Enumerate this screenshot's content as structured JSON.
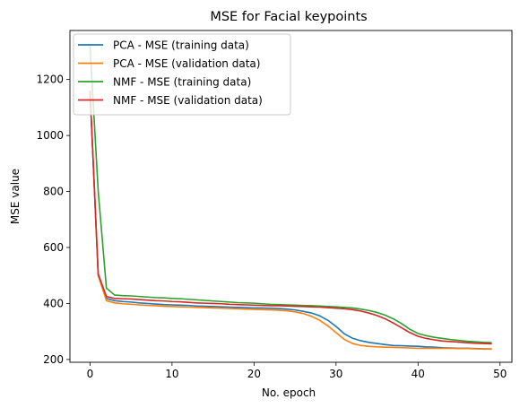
{
  "chart_data": {
    "type": "line",
    "title": "MSE for Facial keypoints",
    "xlabel": "No. epoch",
    "ylabel": "MSE value",
    "xlim": [
      -2.45,
      51.45
    ],
    "ylim": [
      190,
      1375
    ],
    "xticks": [
      0,
      10,
      20,
      30,
      40,
      50
    ],
    "yticks": [
      200,
      400,
      600,
      800,
      1000,
      1200
    ],
    "xtick_labels": [
      "0",
      "10",
      "20",
      "30",
      "40",
      "50"
    ],
    "ytick_labels": [
      "200",
      "400",
      "600",
      "800",
      "1000",
      "1200"
    ],
    "grid": false,
    "legend_position": "upper-left",
    "x": [
      0,
      1,
      2,
      3,
      4,
      5,
      6,
      7,
      8,
      9,
      10,
      11,
      12,
      13,
      14,
      15,
      16,
      17,
      18,
      19,
      20,
      21,
      22,
      23,
      24,
      25,
      26,
      27,
      28,
      29,
      30,
      31,
      32,
      33,
      34,
      35,
      36,
      37,
      38,
      39,
      40,
      41,
      42,
      43,
      44,
      45,
      46,
      47,
      48,
      49
    ],
    "series": [
      {
        "name": "PCA - MSE (training data)",
        "color": "#1f77b4",
        "values": [
          1160,
          500,
          418,
          410,
          407,
          405,
          402,
          400,
          398,
          396,
          395,
          394,
          393,
          391,
          390,
          389,
          388,
          387,
          386,
          385,
          384,
          384,
          383,
          382,
          380,
          377,
          372,
          366,
          356,
          340,
          318,
          292,
          276,
          267,
          261,
          257,
          253,
          250,
          249,
          248,
          247,
          245,
          244,
          242,
          241,
          240,
          240,
          239,
          238,
          238
        ]
      },
      {
        "name": "PCA - MSE (validation data)",
        "color": "#ff7f0e",
        "values": [
          1160,
          500,
          410,
          402,
          399,
          397,
          395,
          393,
          392,
          390,
          389,
          388,
          387,
          386,
          385,
          384,
          383,
          382,
          381,
          380,
          379,
          378,
          377,
          376,
          374,
          370,
          364,
          354,
          340,
          320,
          296,
          272,
          257,
          250,
          247,
          245,
          244,
          243,
          242,
          241,
          240,
          240,
          240,
          240,
          240,
          239,
          239,
          238,
          237,
          237
        ]
      },
      {
        "name": "NMF - MSE (training data)",
        "color": "#2ca02c",
        "values": [
          1320,
          800,
          455,
          430,
          428,
          427,
          425,
          423,
          421,
          420,
          418,
          417,
          415,
          413,
          411,
          409,
          407,
          405,
          403,
          402,
          401,
          399,
          397,
          396,
          395,
          394,
          393,
          392,
          391,
          389,
          388,
          386,
          384,
          380,
          375,
          368,
          358,
          345,
          328,
          308,
          293,
          285,
          279,
          275,
          271,
          268,
          265,
          263,
          261,
          260
        ]
      },
      {
        "name": "NMF - MSE (validation data)",
        "color": "#d62728",
        "values": [
          1160,
          505,
          425,
          418,
          417,
          416,
          414,
          412,
          410,
          409,
          407,
          406,
          404,
          402,
          401,
          400,
          399,
          397,
          396,
          395,
          394,
          393,
          392,
          392,
          391,
          390,
          389,
          388,
          387,
          385,
          383,
          381,
          378,
          373,
          366,
          357,
          345,
          330,
          313,
          296,
          283,
          275,
          270,
          266,
          264,
          262,
          260,
          258,
          257,
          256
        ]
      }
    ]
  }
}
